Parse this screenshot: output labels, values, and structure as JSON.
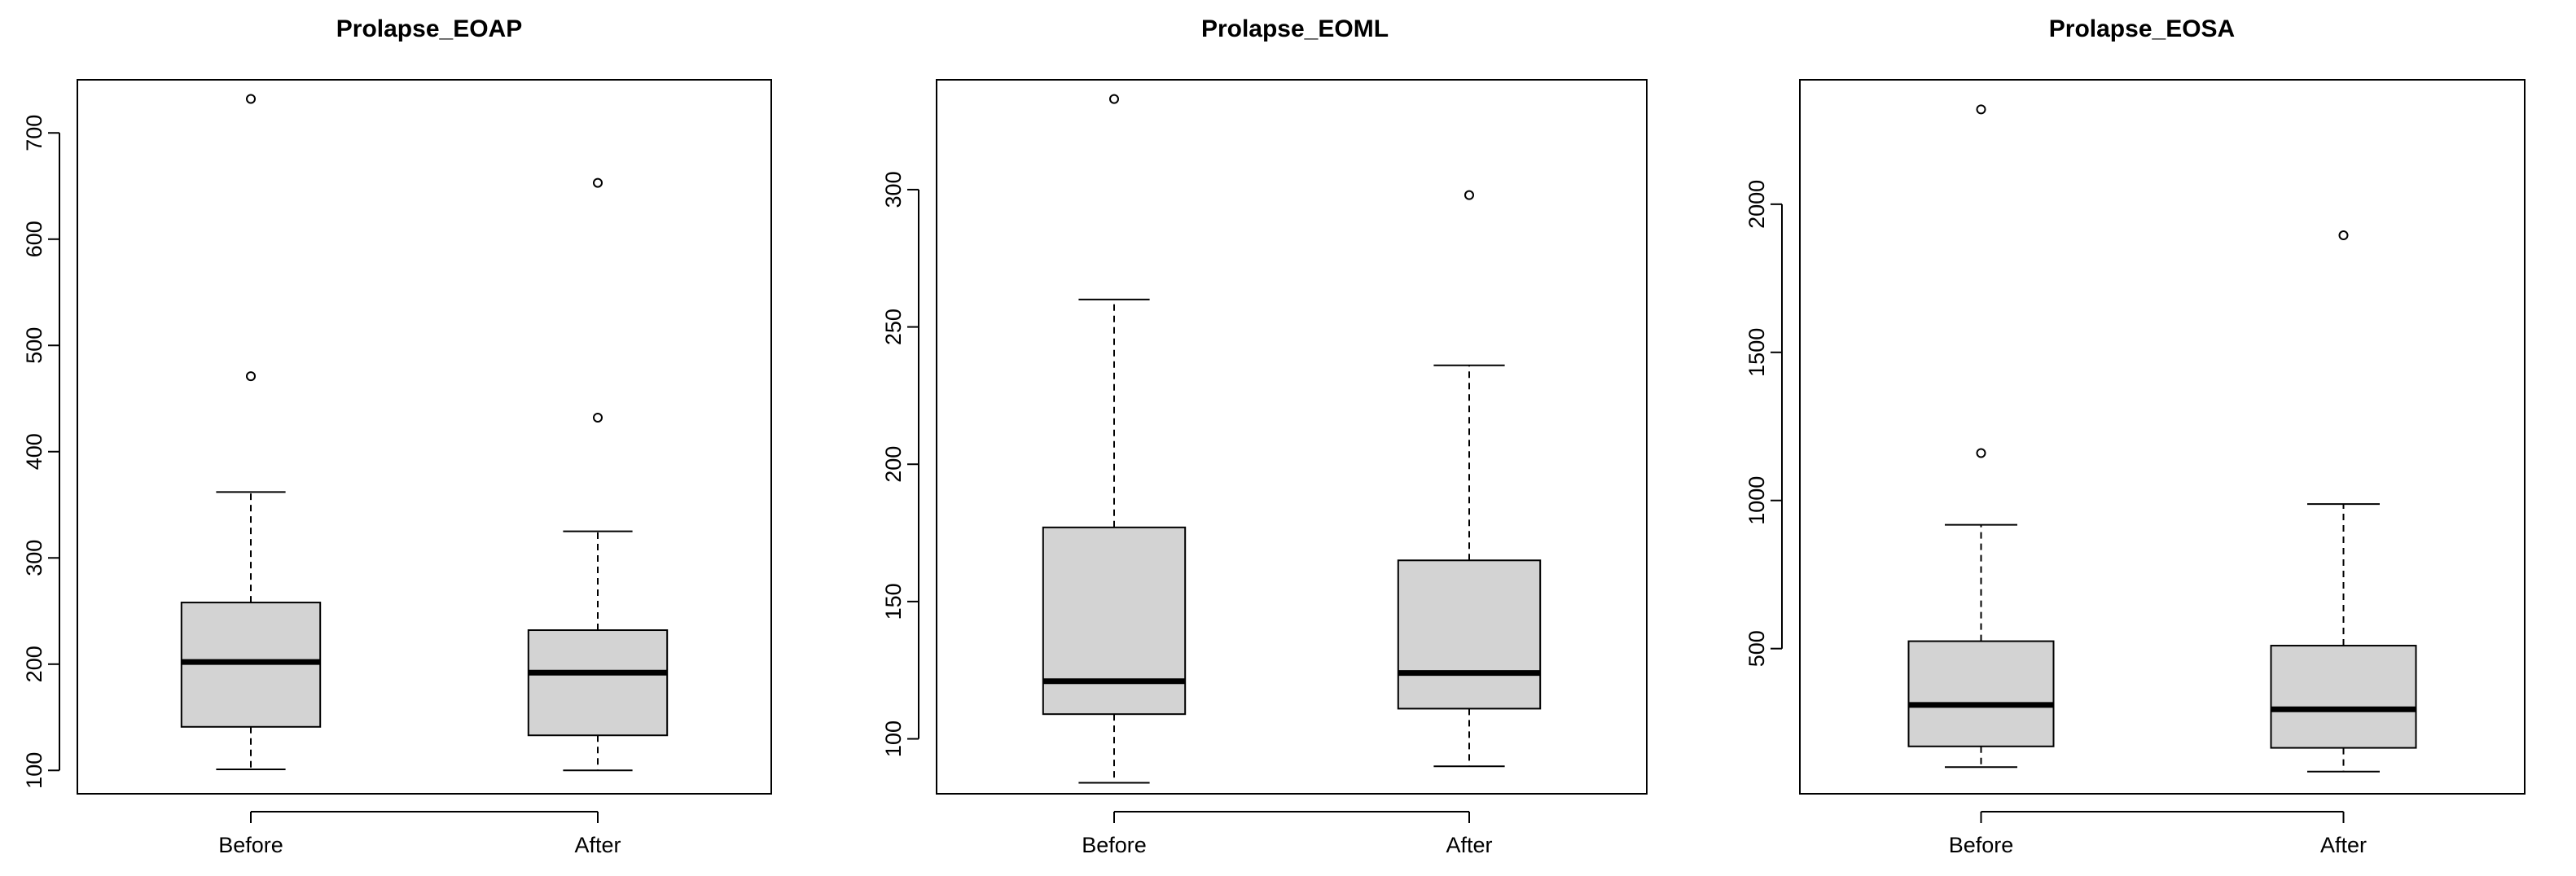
{
  "chart_data": [
    {
      "type": "boxplot",
      "title": "Prolapse_EOAP",
      "xlabel": "",
      "ylabel": "",
      "categories": [
        "Before",
        "After"
      ],
      "ylim": [
        78,
        750
      ],
      "yticks": [
        100,
        200,
        300,
        400,
        500,
        600,
        700
      ],
      "boxes": [
        {
          "name": "Before",
          "whisker_low": 101,
          "q1": 141,
          "median": 202,
          "q3": 258,
          "whisker_high": 362,
          "outliers": [
            471,
            732
          ]
        },
        {
          "name": "After",
          "whisker_low": 100,
          "q1": 133,
          "median": 192,
          "q3": 232,
          "whisker_high": 325,
          "outliers": [
            432,
            653
          ]
        }
      ],
      "fill_color": "#d3d3d3",
      "grid": false
    },
    {
      "type": "boxplot",
      "title": "Prolapse_EOML",
      "xlabel": "",
      "ylabel": "",
      "categories": [
        "Before",
        "After"
      ],
      "ylim": [
        80,
        340
      ],
      "yticks": [
        100,
        150,
        200,
        250,
        300
      ],
      "boxes": [
        {
          "name": "Before",
          "whisker_low": 84,
          "q1": 109,
          "median": 121,
          "q3": 177,
          "whisker_high": 260,
          "outliers": [
            333
          ]
        },
        {
          "name": "After",
          "whisker_low": 90,
          "q1": 111,
          "median": 124,
          "q3": 165,
          "whisker_high": 236,
          "outliers": [
            298
          ]
        }
      ],
      "fill_color": "#d3d3d3",
      "grid": false
    },
    {
      "type": "boxplot",
      "title": "Prolapse_EOSA",
      "xlabel": "",
      "ylabel": "",
      "categories": [
        "Before",
        "After"
      ],
      "ylim": [
        10,
        2420
      ],
      "yticks": [
        500,
        1000,
        1500,
        2000
      ],
      "boxes": [
        {
          "name": "Before",
          "whisker_low": 100,
          "q1": 170,
          "median": 310,
          "q3": 525,
          "whisker_high": 918,
          "outliers": [
            1160,
            2320
          ]
        },
        {
          "name": "After",
          "whisker_low": 85,
          "q1": 165,
          "median": 295,
          "q3": 510,
          "whisker_high": 988,
          "outliers": [
            1895
          ]
        }
      ],
      "fill_color": "#d3d3d3",
      "grid": false
    }
  ]
}
